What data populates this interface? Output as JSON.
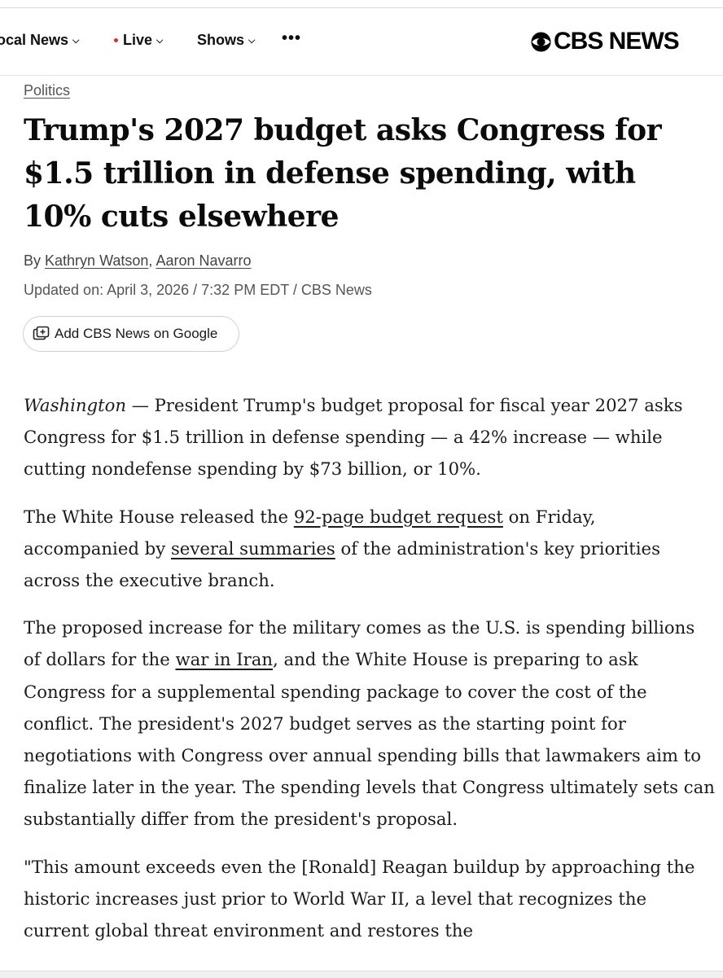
{
  "nav": {
    "local_news": "ocal News",
    "live": "Live",
    "shows": "Shows",
    "more": "•••",
    "brand": "CBS NEWS",
    "brand_color": "#000000",
    "live_dot_color": "#d62b2b"
  },
  "article": {
    "section": "Politics",
    "headline": "Trump's 2027 budget asks Congress for $1.5 trillion in defense spending, with 10% cuts elsewhere",
    "byline_prefix": "By",
    "author_1": "Kathryn Watson",
    "author_sep": ",",
    "author_2": "Aaron Navarro",
    "updated": "Updated on: April 3, 2026 / 7:32 PM EDT / CBS News",
    "google_button": "Add CBS News on Google",
    "p1": {
      "dateline": "Washington",
      "text": " — President Trump's budget proposal for fiscal year 2027 asks Congress for $1.5 trillion in defense spending — a 42% increase — while cutting nondefense spending by $73 billion, or 10%."
    },
    "p2": {
      "t1": "The White House released the ",
      "link1": "92-page budget request",
      "t2": " on Friday, accompanied by ",
      "link2": "several summaries",
      "t3": " of the administration's key priorities across the executive branch."
    },
    "p3": {
      "t1": "The proposed increase for the military comes as the U.S. is spending billions of dollars for the ",
      "link1": "war in Iran",
      "t2": ", and the White House  is preparing to ask Congress for a supplemental spending package to cover the cost of the conflict. The president's 2027 budget serves as the starting point for negotiations with Congress over annual spending bills that lawmakers aim to finalize later in the year. The spending levels that Congress ultimately sets can substantially differ from the president's proposal."
    },
    "p4": {
      "text": "\"This amount exceeds even the [Ronald] Reagan buildup by approaching the historic increases just prior to World War II, a level that recognizes the current global threat environment and restores the"
    }
  },
  "icons": {
    "more": "more-dots-icon",
    "logo": "cbs-eye-icon",
    "google_add": "add-to-google-icon",
    "chevron": "chevron-down-icon"
  }
}
